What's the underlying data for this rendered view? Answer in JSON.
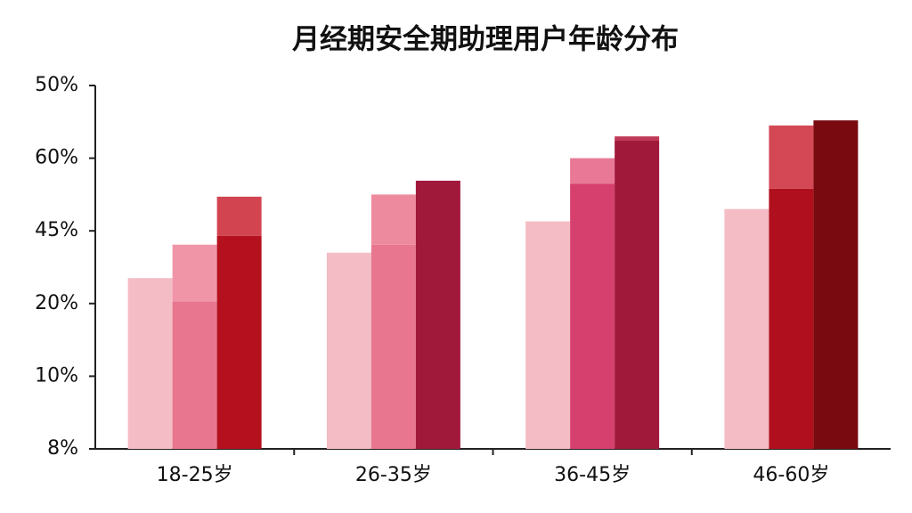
{
  "chart_data": {
    "type": "bar",
    "title": "月经期安全期助理用户年龄分布",
    "categories": [
      "18-25岁",
      "26-35岁",
      "36-45岁",
      "46-60岁"
    ],
    "ylim": [
      0,
      5
    ],
    "yticks": [
      {
        "value": 0,
        "label": "8%"
      },
      {
        "value": 1,
        "label": "10%"
      },
      {
        "value": 2,
        "label": "20%"
      },
      {
        "value": 3,
        "label": "45%"
      },
      {
        "value": 4,
        "label": "60%"
      },
      {
        "value": 5,
        "label": "50%"
      }
    ],
    "series": [
      {
        "slot": 0,
        "colors": [
          "#f4bcc4",
          "#f4bcc4",
          "#f4bcc4",
          "#f4bcc4"
        ],
        "values": [
          2.35,
          2.7,
          3.13,
          3.3
        ]
      },
      {
        "slot": 1,
        "colors": [
          "#e8768e",
          "#e8768e",
          "#d6406e",
          "#b0101e"
        ],
        "values": [
          2.03,
          2.81,
          3.65,
          3.58
        ]
      },
      {
        "slot": 1,
        "colors": [
          "#f095a8",
          "#ee8a9e",
          "#e87896",
          "#d44856"
        ],
        "values": [
          0.78,
          0.69,
          0.35,
          0.87
        ]
      },
      {
        "slot": 2,
        "colors": [
          "#b4101e",
          "#a0183a",
          "#a0183a",
          "#780a10"
        ],
        "values": [
          2.93,
          3.69,
          4.24,
          4.52
        ]
      },
      {
        "slot": 2,
        "colors": [
          "#d24450",
          null,
          "#c03a58",
          null
        ],
        "values": [
          0.54,
          null,
          0.06,
          null
        ]
      }
    ]
  }
}
